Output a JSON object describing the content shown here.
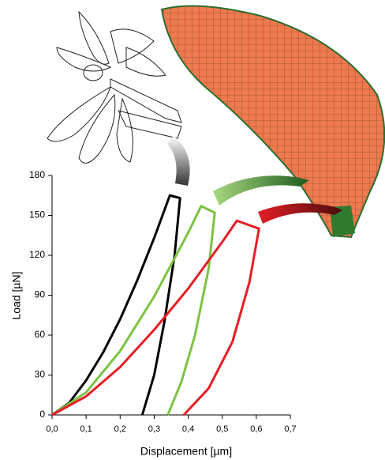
{
  "chart_data": {
    "type": "line",
    "xlabel": "Displacement [µm]",
    "ylabel": "Load [µN]",
    "xlim": [
      0,
      0.7
    ],
    "ylim": [
      0,
      180
    ],
    "xticks": [
      {
        "value": 0,
        "label": "0,0"
      },
      {
        "value": 0.1,
        "label": "0,1"
      },
      {
        "value": 0.2,
        "label": "0,2"
      },
      {
        "value": 0.3,
        "label": "0,3"
      },
      {
        "value": 0.4,
        "label": "0,4"
      },
      {
        "value": 0.5,
        "label": "0,5"
      },
      {
        "value": 0.6,
        "label": "0,6"
      },
      {
        "value": 0.7,
        "label": "0,7"
      }
    ],
    "yticks": [
      0,
      30,
      60,
      90,
      120,
      150,
      180
    ],
    "series": [
      {
        "color": "#000000",
        "x": [
          0,
          0.05,
          0.1,
          0.15,
          0.2,
          0.25,
          0.3,
          0.346,
          0.376,
          0.36,
          0.33,
          0.3,
          0.265
        ],
        "values": [
          0,
          9,
          26,
          47,
          72,
          101,
          133,
          165,
          163,
          120,
          70,
          30,
          0
        ]
      },
      {
        "color": "#7dc242",
        "x": [
          0,
          0.1,
          0.2,
          0.3,
          0.4,
          0.438,
          0.478,
          0.46,
          0.42,
          0.38,
          0.34
        ],
        "values": [
          0,
          17,
          48,
          89,
          137,
          157,
          152,
          110,
          60,
          25,
          0
        ]
      },
      {
        "color": "#e41e26",
        "x": [
          0,
          0.1,
          0.2,
          0.3,
          0.4,
          0.5,
          0.543,
          0.608,
          0.58,
          0.53,
          0.46,
          0.387
        ],
        "values": [
          0,
          14,
          36,
          64,
          95,
          130,
          146,
          140,
          100,
          55,
          20,
          0
        ]
      }
    ]
  }
}
